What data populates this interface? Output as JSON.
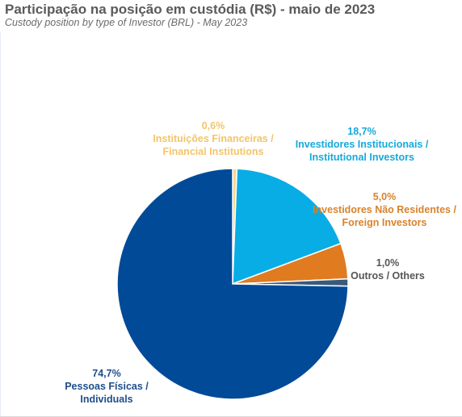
{
  "title": "Participação na posição em custódia (R$) - maio de 2023",
  "subtitle": "Custody position by type of Investor (BRL) - May 2023",
  "chart_data": {
    "type": "pie",
    "title": "Participação na posição em custódia (R$) - maio de 2023",
    "subtitle": "Custody position by type of Investor (BRL) - May 2023",
    "slices": [
      {
        "name": "Instituições Financeiras / Financial Institutions",
        "line1": "Instituições Financeiras /",
        "line2": "Financial Institutions",
        "value": 0.6,
        "label": "0,6%",
        "color": "#F5D88C",
        "label_color": "#F2C56B"
      },
      {
        "name": "Investidores Institucionais / Institutional Investors",
        "line1": "Investidores Institucionais /",
        "line2": "Institutional Investors",
        "value": 18.7,
        "label": "18,7%",
        "color": "#08ADE6",
        "label_color": "#14A9DC"
      },
      {
        "name": "Investidores Não Residentes / Foreign Investors",
        "line1": "Investidores Não Residentes /",
        "line2": "Foreign Investors",
        "value": 5.0,
        "label": "5,0%",
        "color": "#E07B1F",
        "label_color": "#D9822B"
      },
      {
        "name": "Outros / Others",
        "line1": "Outros / Others",
        "line2": "",
        "value": 1.0,
        "label": "1,0%",
        "color": "#3A5A7A",
        "label_color": "#555555"
      },
      {
        "name": "Pessoas Físicas / Individuals",
        "line1": "Pessoas Físicas /",
        "line2": "Individuals",
        "value": 74.7,
        "label": "74,7%",
        "color": "#004A98",
        "label_color": "#1F4E8C"
      }
    ]
  }
}
